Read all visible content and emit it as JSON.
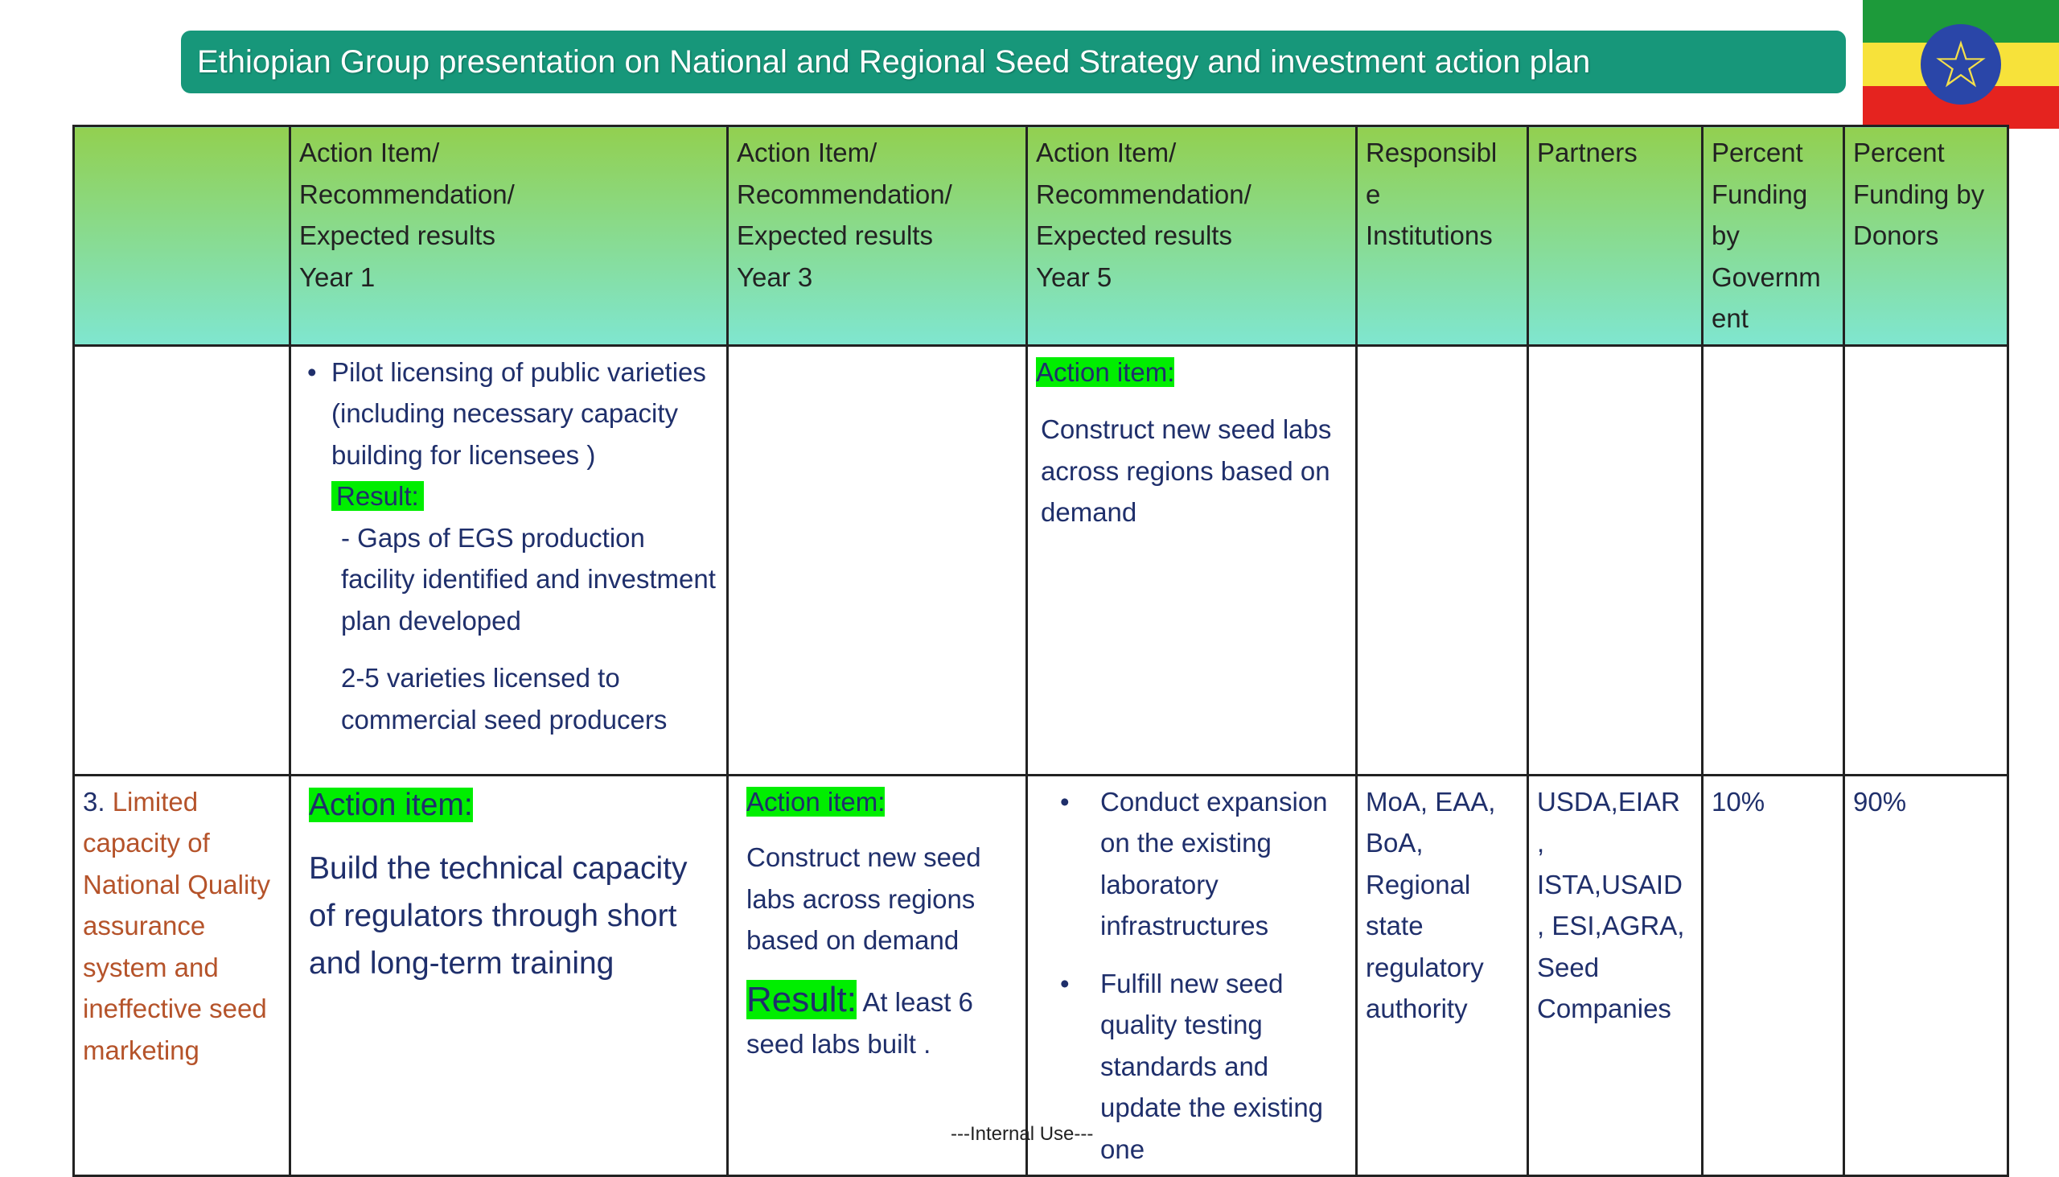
{
  "title": "Ethiopian Group presentation on National and Regional Seed Strategy and investment action plan",
  "headers": [
    "",
    "Action Item/ Recommendation/ Expected results Year 1",
    "Action Item/ Recommendation/ Expected results Year 3",
    "Action Item/ Recommendation/ Expected results Year 5",
    "Responsible Institutions",
    "Partners",
    "Percent Funding by Government",
    "Percent Funding by Donors"
  ],
  "header_lines": {
    "y1": [
      "Action Item/",
      "Recommendation/",
      "Expected results",
      "Year 1"
    ],
    "y3": [
      "Action Item/",
      "Recommendation/",
      "Expected results",
      "Year 3"
    ],
    "y5": [
      "Action Item/",
      "Recommendation/",
      "Expected results",
      "Year 5"
    ],
    "resp": [
      "Responsibl",
      "e",
      "Institutions"
    ],
    "partners": "Partners",
    "gov": [
      "Percent",
      "Funding",
      "by",
      "Governm",
      "ent"
    ],
    "donors": [
      "Percent",
      "Funding by",
      "Donors"
    ]
  },
  "row1": {
    "y1_bullet": "Pilot licensing of public varieties (including necessary capacity building for licensees )",
    "y1_result_label": "Result:",
    "y1_result": "- Gaps of EGS production facility identified and investment plan developed",
    "y1_extra": "2-5 varieties licensed to commercial seed producers",
    "y5_label": "Action item:",
    "y5_text": "Construct new seed labs across regions based on demand"
  },
  "row2": {
    "num": "3.",
    "issue": "Limited capacity of National Quality assurance system and ineffective seed marketing",
    "y1_label": "Action item:",
    "y1_text": "Build the technical capacity of regulators through short and long-term training",
    "y3_label": "Action item:",
    "y3_text": "Construct new seed labs across regions based on demand",
    "y3_result_label": "Result:",
    "y3_result": "At least 6 seed labs built .",
    "y5_bullets": [
      "Conduct expansion on the existing laboratory infrastructures",
      "Fulfill new seed quality testing standards and update the existing one"
    ],
    "resp": "MoA, EAA, BoA, Regional state regulatory authority",
    "partners": "USDA,EIAR , ISTA,USAID , ESI,AGRA, Seed Companies",
    "gov": "10%",
    "donors": "90%"
  },
  "footer": "---Internal Use---",
  "colors": {
    "title_bg": "#17977a",
    "header_top": "#92d050",
    "header_bottom": "#7fe6d0",
    "highlight": "#00ee00",
    "issue_text": "#b5532a"
  }
}
